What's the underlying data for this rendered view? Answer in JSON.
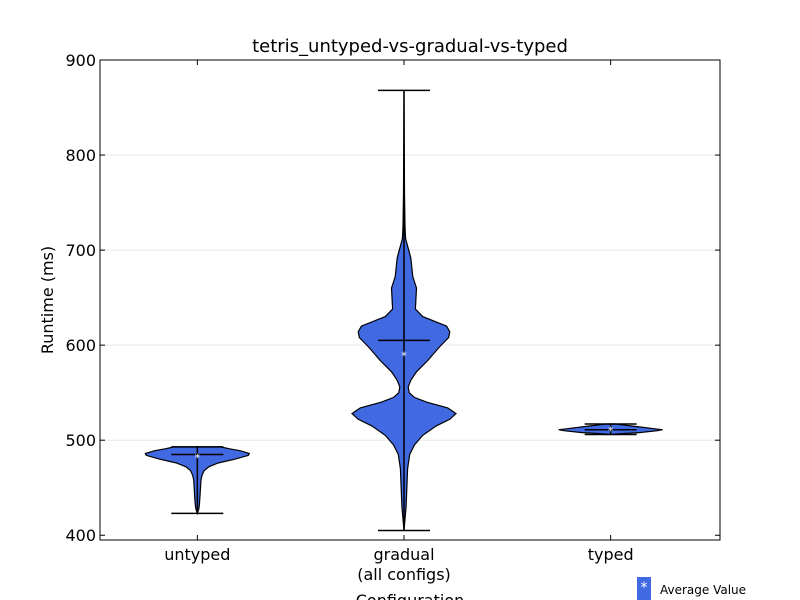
{
  "chart_data": {
    "type": "violin",
    "title": "tetris_untyped-vs-gradual-vs-typed",
    "xlabel": "Configuration",
    "ylabel": "Runtime (ms)",
    "ylim": [
      395,
      900
    ],
    "yticks": [
      400,
      500,
      600,
      700,
      800,
      900
    ],
    "grid": true,
    "legend": {
      "label": "Average Value",
      "marker": "*",
      "placement": "bottom-right"
    },
    "colors": {
      "fill": "#4169e1",
      "edge": "#000000",
      "marker": "#ffffff"
    },
    "series": [
      {
        "category": [
          "untyped"
        ],
        "min": 423,
        "max": 493,
        "median": 485,
        "mean": 483,
        "density": [
          [
            423,
            0.0
          ],
          [
            428,
            0.03
          ],
          [
            432,
            0.04
          ],
          [
            440,
            0.05
          ],
          [
            450,
            0.06
          ],
          [
            458,
            0.07
          ],
          [
            463,
            0.09
          ],
          [
            468,
            0.13
          ],
          [
            472,
            0.22
          ],
          [
            476,
            0.4
          ],
          [
            480,
            0.72
          ],
          [
            484,
            0.98
          ],
          [
            486,
            1.0
          ],
          [
            489,
            0.82
          ],
          [
            491,
            0.62
          ],
          [
            493,
            0.45
          ]
        ]
      },
      {
        "category": [
          "gradual",
          "(all configs)"
        ],
        "min": 405,
        "max": 868,
        "median": 605,
        "mean": 590,
        "density": [
          [
            405,
            0.0
          ],
          [
            430,
            0.04
          ],
          [
            470,
            0.07
          ],
          [
            485,
            0.11
          ],
          [
            495,
            0.2
          ],
          [
            505,
            0.36
          ],
          [
            515,
            0.62
          ],
          [
            522,
            0.88
          ],
          [
            528,
            1.0
          ],
          [
            534,
            0.84
          ],
          [
            540,
            0.44
          ],
          [
            545,
            0.2
          ],
          [
            550,
            0.1
          ],
          [
            556,
            0.08
          ],
          [
            563,
            0.13
          ],
          [
            572,
            0.24
          ],
          [
            584,
            0.46
          ],
          [
            598,
            0.68
          ],
          [
            608,
            0.86
          ],
          [
            614,
            0.88
          ],
          [
            620,
            0.82
          ],
          [
            630,
            0.36
          ],
          [
            638,
            0.22
          ],
          [
            650,
            0.23
          ],
          [
            660,
            0.24
          ],
          [
            672,
            0.17
          ],
          [
            682,
            0.15
          ],
          [
            692,
            0.13
          ],
          [
            702,
            0.08
          ],
          [
            712,
            0.03
          ],
          [
            725,
            0.02
          ],
          [
            760,
            0.01
          ],
          [
            868,
            0.0
          ]
        ]
      },
      {
        "category": [
          "typed"
        ],
        "min": 506,
        "max": 517,
        "median": 511,
        "mean": 511,
        "density": [
          [
            506,
            0.0
          ],
          [
            507,
            0.25
          ],
          [
            508,
            0.55
          ],
          [
            510,
            0.9
          ],
          [
            511,
            1.0
          ],
          [
            512,
            0.85
          ],
          [
            514,
            0.55
          ],
          [
            516,
            0.25
          ],
          [
            517,
            0.1
          ]
        ]
      }
    ]
  }
}
